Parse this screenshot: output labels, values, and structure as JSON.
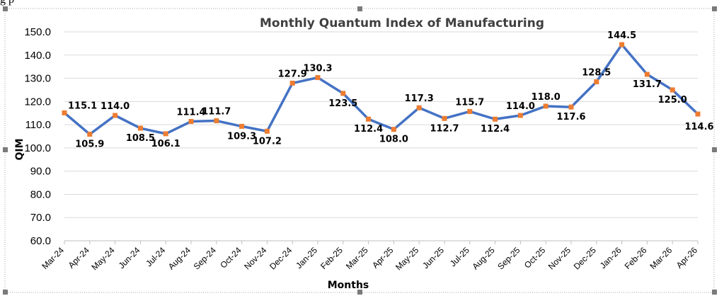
{
  "page": {
    "snippet_text": "g p"
  },
  "chart_data": {
    "type": "line",
    "title": "Monthly Quantum Index of Manufacturing",
    "xlabel": "Months",
    "ylabel": "QIM",
    "ylim": [
      60,
      150
    ],
    "ytick_step": 10,
    "yticks": [
      "60.0",
      "70.0",
      "80.0",
      "90.0",
      "100.0",
      "110.0",
      "120.0",
      "130.0",
      "140.0",
      "150.0"
    ],
    "grid": true,
    "legend": "none",
    "categories": [
      "Mar-24",
      "Apr-24",
      "May-24",
      "Jun-24",
      "Jul-24",
      "Aug-24",
      "Sep-24",
      "Oct-24",
      "Nov-24",
      "Dec-24",
      "Jan-25",
      "Feb-25",
      "Mar-25",
      "Apr-25",
      "May-25",
      "Jun-25",
      "Jul-25",
      "Aug-25",
      "Sep-25",
      "Oct-25",
      "Nov-25",
      "Dec-25",
      "Jan-26",
      "Feb-26",
      "Mar-26",
      "Apr-26"
    ],
    "series": [
      {
        "values": [
          115.1,
          105.9,
          114.0,
          108.5,
          106.1,
          111.4,
          111.7,
          109.3,
          107.2,
          127.9,
          130.3,
          123.5,
          112.4,
          108.0,
          117.3,
          112.7,
          115.7,
          112.4,
          114.0,
          118.0,
          117.6,
          128.5,
          144.5,
          131.7,
          125.0,
          114.6
        ],
        "data_labels": [
          "115.1",
          "105.9",
          "114.0",
          "108.5",
          "106.1",
          "111.4",
          "111.7",
          "109.3",
          "107.2",
          "127.9",
          "130.3",
          "123.5",
          "112.4",
          "108.0",
          "117.3",
          "112.7",
          "115.7",
          "112.4",
          "114.0",
          "118.0",
          "117.6",
          "128.5",
          "144.5",
          "131.7",
          "125.0",
          "114.6"
        ]
      }
    ],
    "colors": {
      "line": "#4472c4",
      "marker": "#ed7d31",
      "grid": "#d9d9d9",
      "axis": "#bfbfbf",
      "text": "#000000",
      "title": "#404040"
    }
  }
}
